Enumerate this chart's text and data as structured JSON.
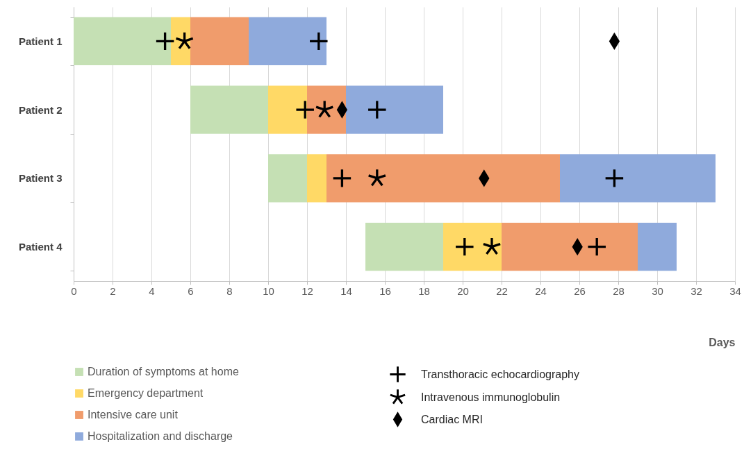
{
  "chart_data": {
    "type": "bar",
    "orientation": "horizontal",
    "categories": [
      "Patient 1",
      "Patient 2",
      "Patient 3",
      "Patient 4"
    ],
    "xlabel": "Days",
    "xlim": [
      0,
      34
    ],
    "xticks": [
      0,
      2,
      4,
      6,
      8,
      10,
      12,
      14,
      16,
      18,
      20,
      22,
      24,
      26,
      28,
      30,
      32,
      34
    ],
    "grid": "x",
    "legend": "bottom",
    "series": [
      {
        "name": "Duration of symptoms at home",
        "color": "#c5e0b4",
        "base": [
          0,
          6,
          10,
          15
        ],
        "values": [
          5,
          4,
          2,
          4
        ]
      },
      {
        "name": "Emergency department",
        "color": "#ffd966",
        "base": [
          5,
          10,
          12,
          19
        ],
        "values": [
          1,
          2,
          1,
          3
        ]
      },
      {
        "name": "Intensive care unit",
        "color": "#f09c6c",
        "base": [
          6,
          12,
          13,
          22
        ],
        "values": [
          3,
          2,
          12,
          7
        ]
      },
      {
        "name": "Hospitalization and discharge",
        "color": "#8faadc",
        "base": [
          9,
          14,
          25,
          29
        ],
        "values": [
          4,
          5,
          8,
          2
        ]
      },
      {
        "type": "scatter",
        "name": "Transthoracic echocardiography",
        "color": "#000000",
        "marker": "cross",
        "x": [
          "Patient 1",
          "Patient 1",
          "Patient 2",
          "Patient 2",
          "Patient 3",
          "Patient 3",
          "Patient 4",
          "Patient 4"
        ],
        "values": [
          4.7,
          12.6,
          11.9,
          15.6,
          13.8,
          27.8,
          20.1,
          26.9
        ]
      },
      {
        "type": "scatter",
        "name": "Intravenous immunoglobulin",
        "color": "#000000",
        "marker": "star",
        "x": [
          "Patient 1",
          "Patient 2",
          "Patient 3",
          "Patient 4"
        ],
        "values": [
          5.7,
          12.9,
          15.6,
          21.5
        ]
      },
      {
        "type": "scatter",
        "name": "Cardiac MRI",
        "color": "#000000",
        "marker": "diamond",
        "x": [
          "Patient 1",
          "Patient 2",
          "Patient 3",
          "Patient 4"
        ],
        "values": [
          27.8,
          13.8,
          21.1,
          25.9
        ]
      }
    ]
  }
}
